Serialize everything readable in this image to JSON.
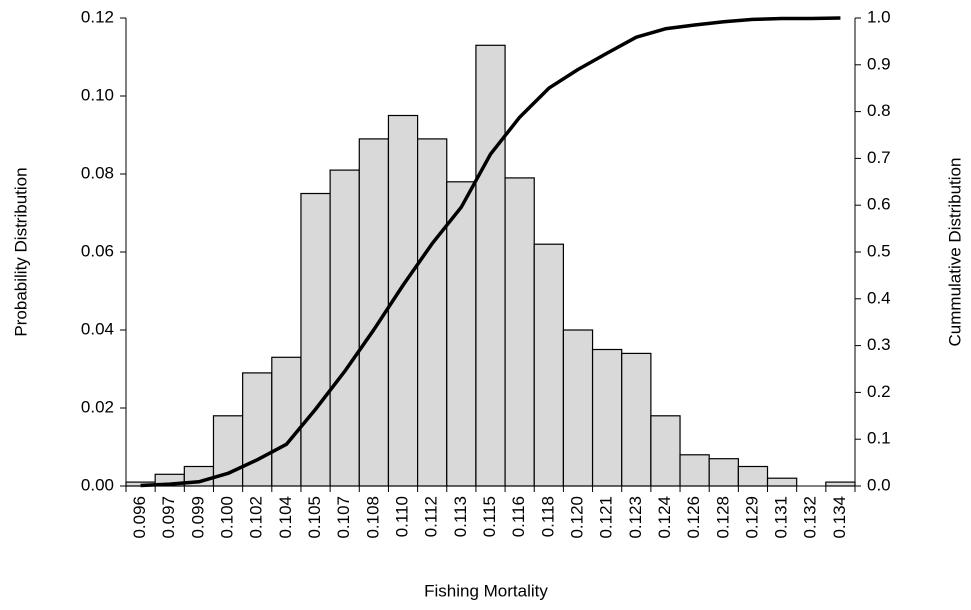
{
  "chart_data": {
    "type": "bar",
    "x_label": "Fishing Mortality",
    "y_label": "Probability Distribution",
    "y2_label": "Cummulative Distribution",
    "categories": [
      "0.096",
      "0.097",
      "0.099",
      "0.100",
      "0.102",
      "0.104",
      "0.105",
      "0.107",
      "0.108",
      "0.110",
      "0.112",
      "0.113",
      "0.115",
      "0.116",
      "0.118",
      "0.120",
      "0.121",
      "0.123",
      "0.124",
      "0.126",
      "0.128",
      "0.129",
      "0.131",
      "0.132",
      "0.134"
    ],
    "series": [
      {
        "type": "bar",
        "color": "#d9d9d9",
        "values": [
          0.001,
          0.003,
          0.005,
          0.018,
          0.029,
          0.033,
          0.075,
          0.081,
          0.089,
          0.095,
          0.089,
          0.078,
          0.113,
          0.079,
          0.062,
          0.04,
          0.035,
          0.034,
          0.018,
          0.008,
          0.007,
          0.005,
          0.002,
          0,
          0.001
        ]
      },
      {
        "type": "line",
        "axis": "y2",
        "color": "#000000",
        "values": [
          0.001,
          0.004,
          0.009,
          0.027,
          0.056,
          0.089,
          0.164,
          0.245,
          0.334,
          0.429,
          0.518,
          0.596,
          0.709,
          0.788,
          0.85,
          0.89,
          0.925,
          0.959,
          0.977,
          0.985,
          0.992,
          0.997,
          0.999,
          0.999,
          1.0
        ]
      }
    ],
    "ylim": [
      0,
      0.12
    ],
    "yticks": [
      {
        "value": 0,
        "label": "0.00"
      },
      {
        "value": 0.02,
        "label": "0.02"
      },
      {
        "value": 0.04,
        "label": "0.04"
      },
      {
        "value": 0.06,
        "label": "0.06"
      },
      {
        "value": 0.08,
        "label": "0.08"
      },
      {
        "value": 0.1,
        "label": "0.10"
      },
      {
        "value": 0.12,
        "label": "0.12"
      }
    ],
    "y2lim": [
      0,
      1
    ],
    "y2ticks": [
      {
        "value": 0,
        "label": "0.0"
      },
      0.1,
      0.2,
      0.3,
      0.4,
      0.5,
      0.6,
      0.7,
      0.8,
      0.9,
      {
        "value": 1,
        "label": "1.0"
      }
    ],
    "grid": false
  }
}
